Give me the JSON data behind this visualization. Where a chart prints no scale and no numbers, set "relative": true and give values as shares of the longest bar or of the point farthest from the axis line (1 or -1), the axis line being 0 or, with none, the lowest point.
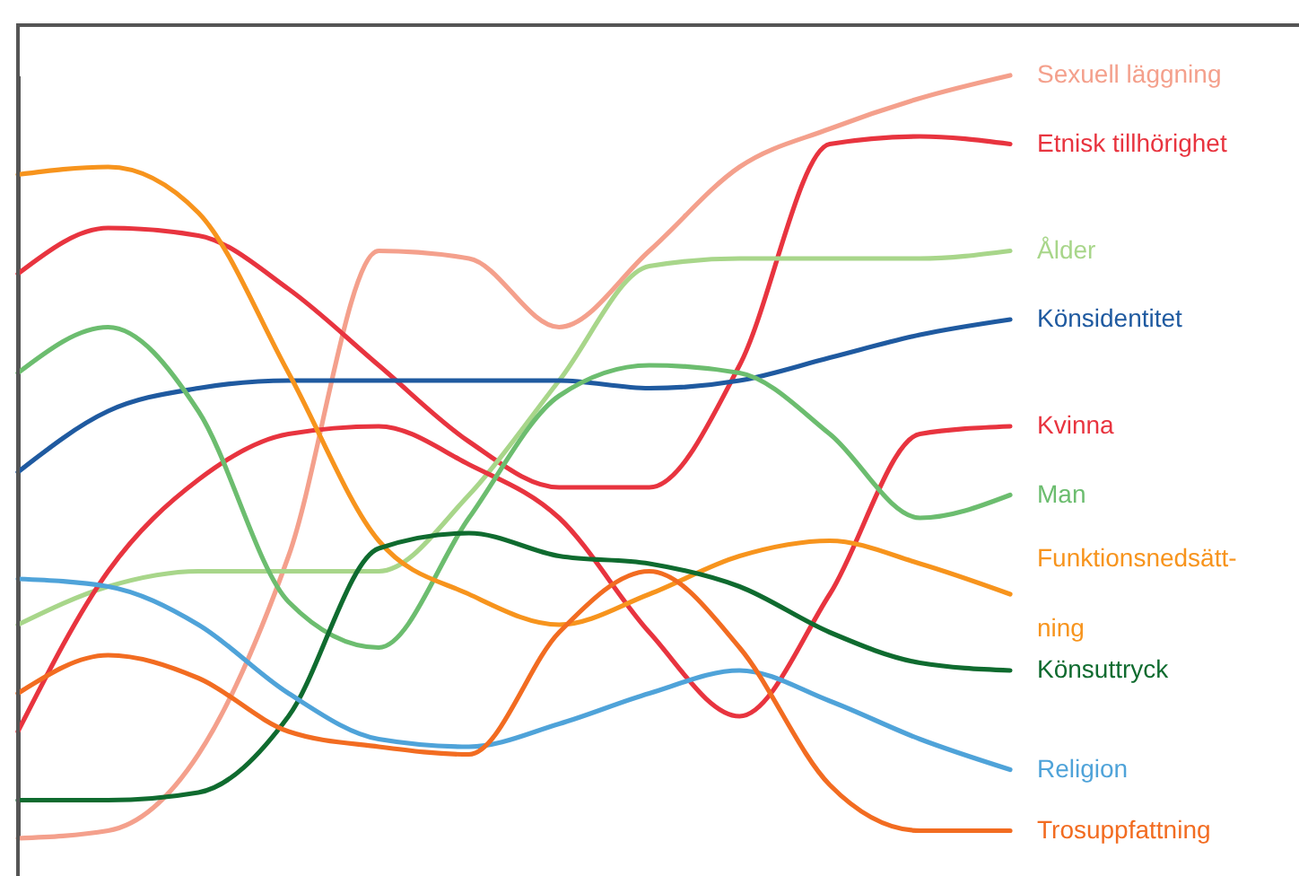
{
  "chart_data": {
    "type": "line",
    "relative": true,
    "categories": [
      null,
      null,
      null,
      null,
      null,
      null,
      null,
      null,
      null,
      null,
      null,
      null
    ],
    "series": [
      {
        "name": "Sexuell läggning",
        "color": "#f4a08c",
        "values": [
          0,
          0.01,
          0.11,
          0.37,
          0.77,
          0.76,
          0.67,
          0.77,
          0.88,
          0.93,
          0.97,
          1.0
        ]
      },
      {
        "name": "Etnisk tillhörighet",
        "color": "#e8343f",
        "values": [
          0.74,
          0.8,
          0.79,
          0.72,
          0.62,
          0.52,
          0.46,
          0.46,
          0.62,
          0.91,
          0.92,
          0.91
        ]
      },
      {
        "name": "Ålder",
        "color": "#a8d68a",
        "values": [
          0.28,
          0.33,
          0.35,
          0.35,
          0.35,
          0.45,
          0.6,
          0.75,
          0.76,
          0.76,
          0.76,
          0.77
        ]
      },
      {
        "name": "Könsidentitet",
        "color": "#1f5aa0",
        "values": [
          0.48,
          0.56,
          0.59,
          0.6,
          0.6,
          0.6,
          0.6,
          0.59,
          0.6,
          0.63,
          0.66,
          0.68
        ]
      },
      {
        "name": "Kvinna",
        "color": "#e8343f",
        "values": [
          0.14,
          0.35,
          0.47,
          0.53,
          0.54,
          0.49,
          0.42,
          0.27,
          0.16,
          0.32,
          0.53,
          0.54
        ]
      },
      {
        "name": "Man",
        "color": "#6cbd6f",
        "values": [
          0.61,
          0.67,
          0.56,
          0.31,
          0.25,
          0.42,
          0.58,
          0.62,
          0.61,
          0.53,
          0.42,
          0.45
        ]
      },
      {
        "name": "Funktionsnedsätt-\nning",
        "color": "#f7941d",
        "values": [
          0.87,
          0.88,
          0.82,
          0.61,
          0.39,
          0.32,
          0.28,
          0.32,
          0.37,
          0.39,
          0.36,
          0.32
        ]
      },
      {
        "name": "Könsuttryck",
        "color": "#0f6b2f",
        "values": [
          0.05,
          0.05,
          0.06,
          0.16,
          0.38,
          0.4,
          0.37,
          0.36,
          0.33,
          0.27,
          0.23,
          0.22
        ]
      },
      {
        "name": "Religion",
        "color": "#4fa3d9",
        "values": [
          0.34,
          0.33,
          0.28,
          0.19,
          0.13,
          0.12,
          0.15,
          0.19,
          0.22,
          0.18,
          0.13,
          0.09
        ]
      },
      {
        "name": "Trosuppfattning",
        "color": "#f26c21",
        "values": [
          0.19,
          0.24,
          0.21,
          0.14,
          0.12,
          0.11,
          0.27,
          0.35,
          0.25,
          0.07,
          0.01,
          0.01
        ]
      }
    ]
  }
}
